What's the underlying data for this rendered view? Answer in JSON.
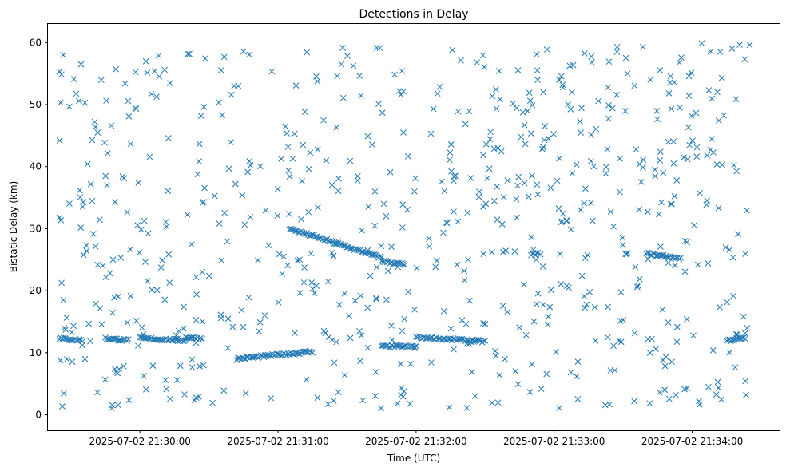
{
  "chart_data": {
    "type": "scatter",
    "title": "Detections in Delay",
    "xlabel": "Time (UTC)",
    "ylabel": "Bistatic Delay (km)",
    "x_unit": "time",
    "xlim": [
      "2025-07-02 21:29:20",
      "2025-07-02 21:34:38"
    ],
    "ylim": [
      -2.5,
      63
    ],
    "x_ticks": [
      "2025-07-02 21:30:00",
      "2025-07-02 21:31:00",
      "2025-07-02 21:32:00",
      "2025-07-02 21:33:00",
      "2025-07-02 21:34:00"
    ],
    "y_ticks": [
      0,
      10,
      20,
      30,
      40,
      50,
      60
    ],
    "marker": "x",
    "color": "#1f77b4",
    "grid": false,
    "tracks": [
      {
        "start": [
          "2025-07-02 21:29:25",
          12.3
        ],
        "end": [
          "2025-07-02 21:29:35",
          12.0
        ]
      },
      {
        "start": [
          "2025-07-02 21:29:45",
          12.3
        ],
        "end": [
          "2025-07-02 21:29:55",
          12.0
        ]
      },
      {
        "start": [
          "2025-07-02 21:30:00",
          12.3
        ],
        "end": [
          "2025-07-02 21:30:20",
          12.0
        ]
      },
      {
        "start": [
          "2025-07-02 21:30:20",
          12.5
        ],
        "end": [
          "2025-07-02 21:30:27",
          12.3
        ]
      },
      {
        "start": [
          "2025-07-02 21:30:42",
          9.0
        ],
        "end": [
          "2025-07-02 21:31:15",
          10.2
        ]
      },
      {
        "start": [
          "2025-07-02 21:31:05",
          30.0
        ],
        "end": [
          "2025-07-02 21:31:45",
          25.3
        ]
      },
      {
        "start": [
          "2025-07-02 21:31:45",
          24.8
        ],
        "end": [
          "2025-07-02 21:31:55",
          24.2
        ]
      },
      {
        "start": [
          "2025-07-02 21:31:45",
          11.0
        ],
        "end": [
          "2025-07-02 21:32:00",
          11.0
        ]
      },
      {
        "start": [
          "2025-07-02 21:32:00",
          12.5
        ],
        "end": [
          "2025-07-02 21:32:30",
          11.8
        ]
      },
      {
        "start": [
          "2025-07-02 21:32:50",
          25.8
        ],
        "end": [
          "2025-07-02 21:32:53",
          26.0
        ]
      },
      {
        "start": [
          "2025-07-02 21:33:40",
          26.0
        ],
        "end": [
          "2025-07-02 21:33:55",
          25.2
        ]
      },
      {
        "start": [
          "2025-07-02 21:34:15",
          12.0
        ],
        "end": [
          "2025-07-02 21:34:23",
          12.3
        ]
      }
    ]
  }
}
